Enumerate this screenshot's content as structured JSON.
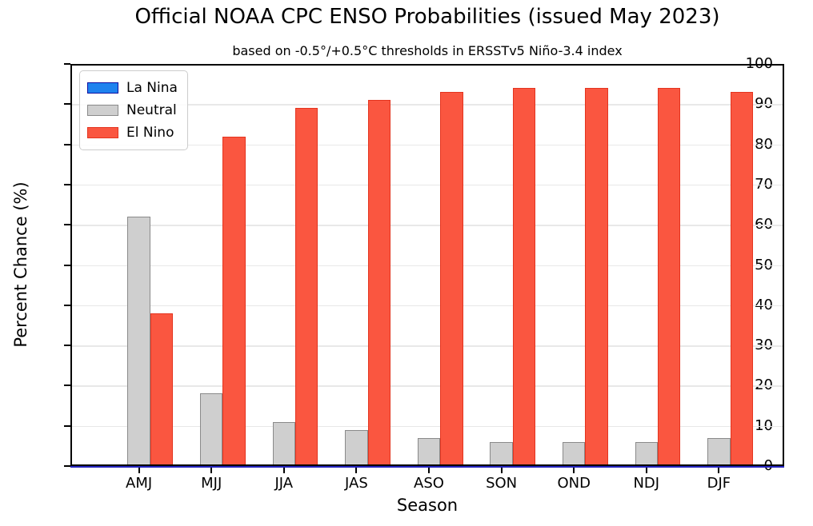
{
  "title": "Official NOAA CPC ENSO Probabilities (issued May 2023)",
  "subtitle": "based on -0.5°/+0.5°C thresholds in ERSSTv5 Niño-3.4 index",
  "chart_data": {
    "type": "bar",
    "categories": [
      "AMJ",
      "MJJ",
      "JJA",
      "JAS",
      "ASO",
      "SON",
      "OND",
      "NDJ",
      "DJF"
    ],
    "series": [
      {
        "name": "La Nina",
        "fill": "#1e82ee",
        "edge": "#0f0fa0",
        "values": [
          0,
          0,
          0,
          0,
          0,
          0,
          0,
          0,
          0
        ]
      },
      {
        "name": "Neutral",
        "fill": "#cfcfcf",
        "edge": "#8a8a8a",
        "values": [
          62,
          18,
          11,
          9,
          7,
          6,
          6,
          6,
          7
        ]
      },
      {
        "name": "El Nino",
        "fill": "#fa5640",
        "edge": "#e4341f",
        "values": [
          38,
          82,
          89,
          91,
          93,
          94,
          94,
          94,
          93
        ]
      }
    ],
    "xlabel": "Season",
    "ylabel": "Percent Chance (%)",
    "ylim": [
      0,
      100
    ],
    "yticks": [
      0,
      10,
      20,
      30,
      40,
      50,
      60,
      70,
      80,
      90,
      100
    ],
    "grid": true,
    "legend_position": "upper left",
    "baseline_line_color": "#2424c0"
  }
}
